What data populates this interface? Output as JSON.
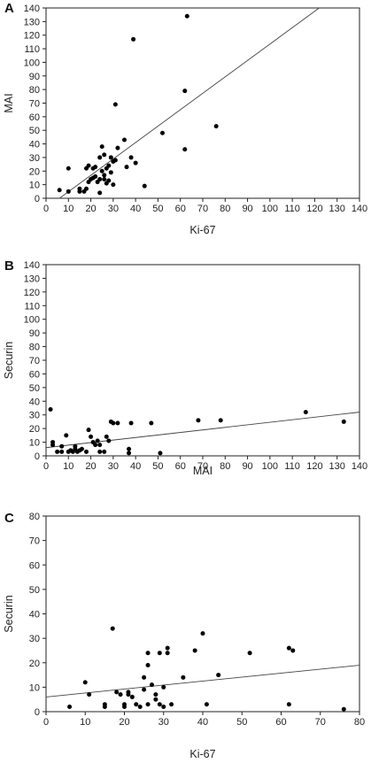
{
  "chart_data": [
    {
      "type": "scatter",
      "panel_label": "A",
      "xlabel": "Ki-67",
      "ylabel": "MAI",
      "xlim": [
        0,
        140
      ],
      "ylim": [
        0,
        140
      ],
      "xticks": [
        0,
        10,
        20,
        30,
        40,
        50,
        60,
        70,
        80,
        90,
        100,
        110,
        120,
        130,
        140
      ],
      "yticks": [
        0,
        10,
        20,
        30,
        40,
        50,
        60,
        70,
        80,
        90,
        100,
        110,
        120,
        130,
        140
      ],
      "grid": false,
      "points": [
        [
          6,
          6
        ],
        [
          10,
          22
        ],
        [
          10,
          5
        ],
        [
          15,
          7
        ],
        [
          15,
          5
        ],
        [
          17,
          5
        ],
        [
          18,
          7
        ],
        [
          18,
          22
        ],
        [
          19,
          12
        ],
        [
          19,
          24
        ],
        [
          20,
          14
        ],
        [
          21,
          22
        ],
        [
          21,
          15
        ],
        [
          22,
          23
        ],
        [
          22,
          16
        ],
        [
          23,
          12
        ],
        [
          24,
          14
        ],
        [
          24,
          30
        ],
        [
          24,
          4
        ],
        [
          25,
          38
        ],
        [
          25,
          20
        ],
        [
          26,
          17
        ],
        [
          26,
          14
        ],
        [
          26,
          32
        ],
        [
          27,
          11
        ],
        [
          27,
          22
        ],
        [
          28,
          13
        ],
        [
          28,
          24
        ],
        [
          29,
          30
        ],
        [
          29,
          19
        ],
        [
          30,
          10
        ],
        [
          30,
          27
        ],
        [
          31,
          28
        ],
        [
          31,
          69
        ],
        [
          32,
          37
        ],
        [
          35,
          43
        ],
        [
          36,
          23
        ],
        [
          38,
          30
        ],
        [
          39,
          117
        ],
        [
          40,
          26
        ],
        [
          44,
          9
        ],
        [
          52,
          48
        ],
        [
          62,
          36
        ],
        [
          62,
          79
        ],
        [
          63,
          134
        ],
        [
          76,
          53
        ]
      ],
      "fit_line": {
        "x": [
          6,
          122
        ],
        "y": [
          0,
          140
        ]
      }
    },
    {
      "type": "scatter",
      "panel_label": "B",
      "xlabel": "MAI",
      "ylabel": "Securin",
      "xlim": [
        0,
        140
      ],
      "ylim": [
        0,
        140
      ],
      "xticks": [
        0,
        10,
        20,
        30,
        40,
        50,
        60,
        70,
        80,
        90,
        100,
        110,
        120,
        130,
        140
      ],
      "yticks": [
        0,
        10,
        20,
        30,
        40,
        50,
        60,
        70,
        80,
        90,
        100,
        110,
        120,
        130,
        140
      ],
      "grid": false,
      "points": [
        [
          2,
          34
        ],
        [
          3,
          10
        ],
        [
          3,
          8
        ],
        [
          5,
          3
        ],
        [
          7,
          7
        ],
        [
          7,
          3
        ],
        [
          9,
          15
        ],
        [
          10,
          3
        ],
        [
          11,
          4
        ],
        [
          12,
          3
        ],
        [
          13,
          7
        ],
        [
          13,
          5
        ],
        [
          14,
          3
        ],
        [
          15,
          4
        ],
        [
          16,
          5
        ],
        [
          18,
          3
        ],
        [
          19,
          19
        ],
        [
          20,
          14
        ],
        [
          21,
          10
        ],
        [
          22,
          8
        ],
        [
          23,
          11
        ],
        [
          24,
          8
        ],
        [
          24,
          3
        ],
        [
          26,
          3
        ],
        [
          27,
          14
        ],
        [
          28,
          11
        ],
        [
          29,
          25
        ],
        [
          30,
          24
        ],
        [
          32,
          24
        ],
        [
          37,
          5
        ],
        [
          37,
          2
        ],
        [
          38,
          24
        ],
        [
          47,
          24
        ],
        [
          51,
          2
        ],
        [
          68,
          26
        ],
        [
          78,
          26
        ],
        [
          116,
          32
        ],
        [
          133,
          25
        ]
      ],
      "fit_line": {
        "x": [
          0,
          140
        ],
        "y": [
          6,
          32
        ]
      }
    },
    {
      "type": "scatter",
      "panel_label": "C",
      "xlabel": "Ki-67",
      "ylabel": "Securin",
      "xlim": [
        0,
        80
      ],
      "ylim": [
        0,
        80
      ],
      "xticks": [
        0,
        10,
        20,
        30,
        40,
        50,
        60,
        70,
        80
      ],
      "yticks": [
        0,
        10,
        20,
        30,
        40,
        50,
        60,
        70,
        80
      ],
      "grid": false,
      "points": [
        [
          6,
          2
        ],
        [
          10,
          12
        ],
        [
          11,
          7
        ],
        [
          15,
          2
        ],
        [
          15,
          3
        ],
        [
          17,
          34
        ],
        [
          18,
          8
        ],
        [
          19,
          7
        ],
        [
          20,
          3
        ],
        [
          20,
          2
        ],
        [
          21,
          8
        ],
        [
          21,
          7
        ],
        [
          22,
          6
        ],
        [
          23,
          3
        ],
        [
          24,
          2
        ],
        [
          25,
          14
        ],
        [
          25,
          9
        ],
        [
          26,
          24
        ],
        [
          26,
          19
        ],
        [
          26,
          3
        ],
        [
          27,
          11
        ],
        [
          28,
          7
        ],
        [
          28,
          5
        ],
        [
          29,
          24
        ],
        [
          29,
          3
        ],
        [
          30,
          10
        ],
        [
          30,
          2
        ],
        [
          31,
          26
        ],
        [
          31,
          24
        ],
        [
          32,
          3
        ],
        [
          35,
          14
        ],
        [
          38,
          25
        ],
        [
          40,
          32
        ],
        [
          41,
          3
        ],
        [
          44,
          15
        ],
        [
          52,
          24
        ],
        [
          62,
          26
        ],
        [
          63,
          25
        ],
        [
          62,
          3
        ],
        [
          76,
          1
        ]
      ],
      "fit_line": {
        "x": [
          0,
          80
        ],
        "y": [
          6,
          19
        ]
      }
    }
  ]
}
